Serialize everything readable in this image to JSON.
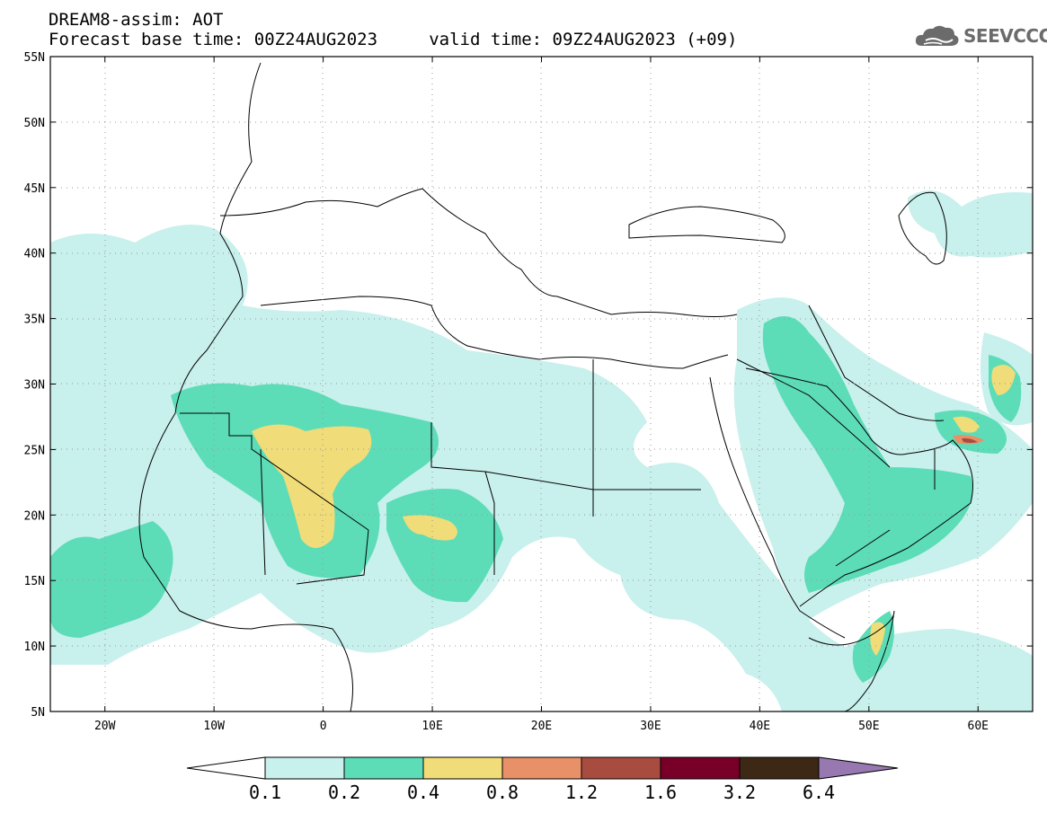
{
  "header": {
    "title_line1": "DREAM8-assim: AOT",
    "title_line2": "Forecast base time: 00Z24AUG2023     valid time: 09Z24AUG2023 (+09)"
  },
  "logo": {
    "text": "SEEVCCC",
    "icon": "cloud-icon",
    "color": "#6b6b6b"
  },
  "map": {
    "lon_range": [
      -25,
      65
    ],
    "lat_range": [
      5,
      55
    ],
    "x_ticks": [
      "20W",
      "10W",
      "0",
      "10E",
      "20E",
      "30E",
      "40E",
      "50E",
      "60E"
    ],
    "y_ticks": [
      "5N",
      "10N",
      "15N",
      "20N",
      "25N",
      "30N",
      "35N",
      "40N",
      "45N",
      "50N",
      "55N"
    ],
    "gridlines": "dotted",
    "variable": "AOT"
  },
  "colorbar": {
    "labels": [
      "0.1",
      "0.2",
      "0.4",
      "0.8",
      "1.2",
      "1.6",
      "3.2",
      "6.4"
    ],
    "colors": [
      "#c8f0ec",
      "#5ddcb8",
      "#f0dc78",
      "#e89068",
      "#a84c40",
      "#780028",
      "#3c2814",
      "#9878b0"
    ],
    "under_color": "#ffffff",
    "over_color": "#9878b0"
  }
}
